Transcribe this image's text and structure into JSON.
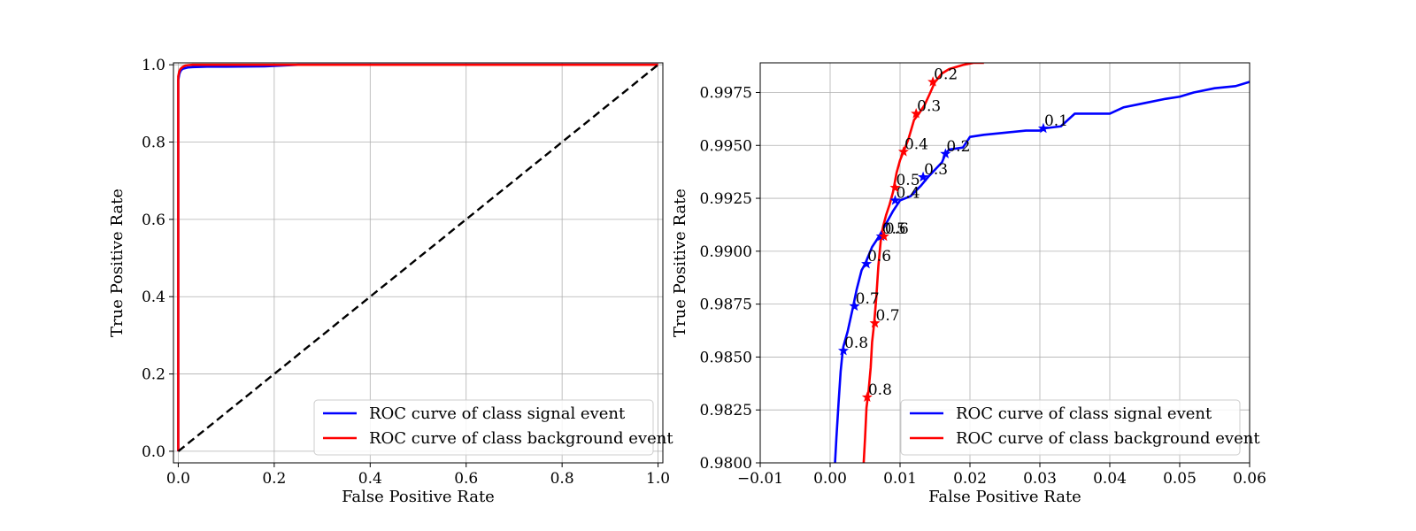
{
  "chart_data": [
    {
      "type": "line",
      "panel": "left",
      "xlabel": "False Positive Rate",
      "ylabel": "True Positive Rate",
      "xlim": [
        -0.01,
        1.01
      ],
      "ylim": [
        -0.03,
        1.005
      ],
      "xticks": [
        0.0,
        0.2,
        0.4,
        0.6,
        0.8,
        1.0
      ],
      "xtick_labels": [
        "0.0",
        "0.2",
        "0.4",
        "0.6",
        "0.8",
        "1.0"
      ],
      "yticks": [
        0.0,
        0.2,
        0.4,
        0.6,
        0.8,
        1.0
      ],
      "ytick_labels": [
        "0.0",
        "0.2",
        "0.4",
        "0.6",
        "0.8",
        "1.0"
      ],
      "grid": true,
      "legend_position": "lower-right",
      "series": [
        {
          "name": "ROC curve of class signal event",
          "color": "#0000ff",
          "x": [
            0.0,
            0.0,
            0.002,
            0.004,
            0.006,
            0.01,
            0.02,
            0.03,
            0.06,
            0.1,
            0.18,
            0.25,
            0.5,
            0.75,
            1.0
          ],
          "y": [
            0.0,
            0.96,
            0.975,
            0.982,
            0.986,
            0.99,
            0.993,
            0.994,
            0.995,
            0.995,
            0.996,
            1.0,
            1.0,
            1.0,
            1.0
          ]
        },
        {
          "name": "ROC curve of class background event",
          "color": "#ff0000",
          "x": [
            0.0,
            0.0,
            0.002,
            0.004,
            0.007,
            0.01,
            0.015,
            0.02,
            0.03,
            0.05,
            0.1,
            0.3,
            0.6,
            1.0
          ],
          "y": [
            0.0,
            0.97,
            0.982,
            0.988,
            0.992,
            0.995,
            0.998,
            0.999,
            1.0,
            1.0,
            1.0,
            1.0,
            1.0,
            1.0
          ]
        },
        {
          "name": "",
          "color": "#000000",
          "style": "dashed",
          "x": [
            0.0,
            1.0
          ],
          "y": [
            0.0,
            1.0
          ]
        }
      ]
    },
    {
      "type": "line",
      "panel": "right",
      "xlabel": "False Positive Rate",
      "ylabel": "True Positive Rate",
      "xlim": [
        -0.01,
        0.06
      ],
      "ylim": [
        0.98,
        0.9989
      ],
      "xticks": [
        -0.01,
        0.0,
        0.01,
        0.02,
        0.03,
        0.04,
        0.05,
        0.06
      ],
      "xtick_labels": [
        "−0.01",
        "0.00",
        "0.01",
        "0.02",
        "0.03",
        "0.04",
        "0.05",
        "0.06"
      ],
      "yticks": [
        0.98,
        0.9825,
        0.985,
        0.9875,
        0.99,
        0.9925,
        0.995,
        0.9975
      ],
      "ytick_labels": [
        "0.9800",
        "0.9825",
        "0.9850",
        "0.9875",
        "0.9900",
        "0.9925",
        "0.9950",
        "0.9975"
      ],
      "grid": true,
      "legend_position": "lower-right",
      "series": [
        {
          "name": "ROC curve of class signal event",
          "color": "#0000ff",
          "x": [
            0.0007,
            0.0009,
            0.0012,
            0.0015,
            0.0018,
            0.0019,
            0.0025,
            0.0033,
            0.0038,
            0.0045,
            0.005,
            0.006,
            0.007,
            0.008,
            0.009,
            0.01,
            0.0115,
            0.013,
            0.014,
            0.016,
            0.0165,
            0.017,
            0.019,
            0.02,
            0.022,
            0.025,
            0.028,
            0.03,
            0.0305,
            0.033,
            0.034,
            0.035,
            0.04,
            0.042,
            0.045,
            0.048,
            0.05,
            0.052,
            0.055,
            0.058,
            0.06
          ],
          "y": [
            0.98,
            0.9812,
            0.9828,
            0.9843,
            0.9853,
            0.9855,
            0.9862,
            0.9874,
            0.9882,
            0.9891,
            0.9894,
            0.9902,
            0.9907,
            0.9913,
            0.9919,
            0.9924,
            0.9926,
            0.9931,
            0.9935,
            0.9942,
            0.9946,
            0.9948,
            0.9949,
            0.9954,
            0.9955,
            0.9956,
            0.9957,
            0.9957,
            0.9958,
            0.9959,
            0.9962,
            0.9965,
            0.9965,
            0.9968,
            0.997,
            0.9972,
            0.9973,
            0.9975,
            0.9977,
            0.9978,
            0.998
          ]
        },
        {
          "name": "ROC curve of class background event",
          "color": "#ff0000",
          "x": [
            0.0048,
            0.005,
            0.0052,
            0.0055,
            0.0058,
            0.006,
            0.0063,
            0.0066,
            0.0069,
            0.0073,
            0.0076,
            0.008,
            0.0085,
            0.009,
            0.0095,
            0.01,
            0.0105,
            0.0112,
            0.012,
            0.0127,
            0.0135,
            0.0142,
            0.015,
            0.0155,
            0.016,
            0.017,
            0.018,
            0.019,
            0.0205,
            0.022
          ],
          "y": [
            0.98,
            0.9812,
            0.9826,
            0.9834,
            0.9845,
            0.9857,
            0.9866,
            0.9878,
            0.9893,
            0.9907,
            0.9912,
            0.9917,
            0.9922,
            0.9928,
            0.9937,
            0.9943,
            0.9947,
            0.9953,
            0.9962,
            0.9965,
            0.9969,
            0.9974,
            0.998,
            0.9982,
            0.9984,
            0.9986,
            0.9987,
            0.9988,
            0.9989,
            0.9989
          ]
        }
      ],
      "annotations": [
        {
          "series": 0,
          "label": "0.1",
          "x": 0.0305,
          "y": 0.9958
        },
        {
          "series": 0,
          "label": "0.2",
          "x": 0.0165,
          "y": 0.9946
        },
        {
          "series": 0,
          "label": "0.3",
          "x": 0.0133,
          "y": 0.9935
        },
        {
          "series": 0,
          "label": "0.4",
          "x": 0.0093,
          "y": 0.9924
        },
        {
          "series": 0,
          "label": "0.5",
          "x": 0.0073,
          "y": 0.9907
        },
        {
          "series": 0,
          "label": "0.6",
          "x": 0.0052,
          "y": 0.9894
        },
        {
          "series": 0,
          "label": "0.7",
          "x": 0.0035,
          "y": 0.9874
        },
        {
          "series": 0,
          "label": "0.8",
          "x": 0.0019,
          "y": 0.9853
        },
        {
          "series": 1,
          "label": "0.2",
          "x": 0.0147,
          "y": 0.998
        },
        {
          "series": 1,
          "label": "0.3",
          "x": 0.0123,
          "y": 0.9965
        },
        {
          "series": 1,
          "label": "0.4",
          "x": 0.0105,
          "y": 0.9947
        },
        {
          "series": 1,
          "label": "0.5",
          "x": 0.0093,
          "y": 0.993
        },
        {
          "series": 1,
          "label": "0.6",
          "x": 0.0077,
          "y": 0.9907
        },
        {
          "series": 1,
          "label": "0.7",
          "x": 0.0064,
          "y": 0.9866
        },
        {
          "series": 1,
          "label": "0.8",
          "x": 0.0053,
          "y": 0.9831
        }
      ]
    }
  ]
}
